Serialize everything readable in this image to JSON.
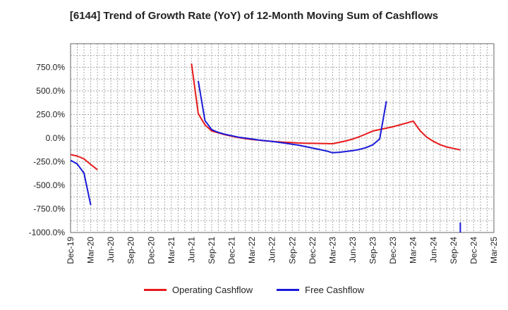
{
  "chart_data": {
    "type": "line",
    "title": "[6144]  Trend of Growth Rate (YoY) of 12-Month Moving Sum of Cashflows",
    "xlabel": "",
    "ylabel": "",
    "ylim": [
      -1000,
      1000
    ],
    "y_ticks": [
      750,
      500,
      250,
      0,
      -250,
      -500,
      -750,
      -1000
    ],
    "y_tick_labels": [
      "750.0%",
      "500.0%",
      "250.0%",
      "0.0%",
      "-250.0%",
      "-500.0%",
      "-750.0%",
      "-1000.0%"
    ],
    "x_ticks": [
      "Dec-19",
      "Mar-20",
      "Jun-20",
      "Sep-20",
      "Dec-20",
      "Mar-21",
      "Jun-21",
      "Sep-21",
      "Dec-21",
      "Mar-22",
      "Jun-22",
      "Sep-22",
      "Dec-22",
      "Mar-23",
      "Jun-23",
      "Sep-23",
      "Dec-23",
      "Mar-24",
      "Jun-24",
      "Sep-24",
      "Dec-24",
      "Mar-25"
    ],
    "grid": true,
    "legend_position": "bottom",
    "series": [
      {
        "name": "Operating Cashflow",
        "color": "#e8191a",
        "segments": [
          [
            [
              0,
              -175
            ],
            [
              1,
              -190
            ],
            [
              2,
              -220
            ],
            [
              3,
              -280
            ],
            [
              4,
              -335
            ]
          ],
          [
            [
              18,
              790
            ],
            [
              19,
              260
            ],
            [
              20,
              140
            ],
            [
              21,
              75
            ],
            [
              22,
              55
            ],
            [
              23,
              35
            ],
            [
              24,
              20
            ],
            [
              25,
              5
            ],
            [
              26,
              -5
            ],
            [
              27,
              -15
            ],
            [
              28,
              -22
            ],
            [
              29,
              -30
            ],
            [
              30,
              -35
            ],
            [
              31,
              -40
            ],
            [
              32,
              -45
            ],
            [
              33,
              -48
            ],
            [
              34,
              -52
            ],
            [
              35,
              -55
            ],
            [
              36,
              -55
            ],
            [
              37,
              -57
            ],
            [
              38,
              -58
            ],
            [
              39,
              -60
            ],
            [
              40,
              -45
            ],
            [
              41,
              -30
            ],
            [
              42,
              -10
            ],
            [
              43,
              15
            ],
            [
              44,
              45
            ],
            [
              45,
              75
            ],
            [
              46,
              90
            ],
            [
              47,
              105
            ],
            [
              48,
              120
            ],
            [
              49,
              140
            ],
            [
              50,
              160
            ],
            [
              51,
              180
            ],
            [
              52,
              80
            ],
            [
              53,
              10
            ],
            [
              54,
              -35
            ],
            [
              55,
              -70
            ],
            [
              56,
              -95
            ],
            [
              57,
              -110
            ],
            [
              58,
              -125
            ]
          ]
        ]
      },
      {
        "name": "Free Cashflow",
        "color": "#1a1ad9",
        "segments": [
          [
            [
              0,
              -235
            ],
            [
              1,
              -275
            ],
            [
              2,
              -370
            ],
            [
              3,
              -710
            ]
          ],
          [
            [
              19,
              605
            ],
            [
              20,
              185
            ],
            [
              21,
              90
            ],
            [
              22,
              60
            ],
            [
              23,
              40
            ],
            [
              24,
              25
            ],
            [
              25,
              10
            ],
            [
              26,
              0
            ],
            [
              27,
              -10
            ],
            [
              28,
              -20
            ],
            [
              29,
              -28
            ],
            [
              30,
              -36
            ],
            [
              31,
              -45
            ],
            [
              32,
              -55
            ],
            [
              33,
              -65
            ],
            [
              34,
              -75
            ],
            [
              35,
              -90
            ],
            [
              36,
              -105
            ],
            [
              37,
              -120
            ],
            [
              38,
              -135
            ],
            [
              39,
              -155
            ],
            [
              40,
              -150
            ],
            [
              41,
              -142
            ],
            [
              42,
              -133
            ],
            [
              43,
              -120
            ],
            [
              44,
              -100
            ],
            [
              45,
              -70
            ],
            [
              46,
              -10
            ],
            [
              47,
              390
            ]
          ],
          [
            [
              58,
              -895
            ],
            [
              58,
              -1000
            ]
          ]
        ]
      }
    ]
  }
}
